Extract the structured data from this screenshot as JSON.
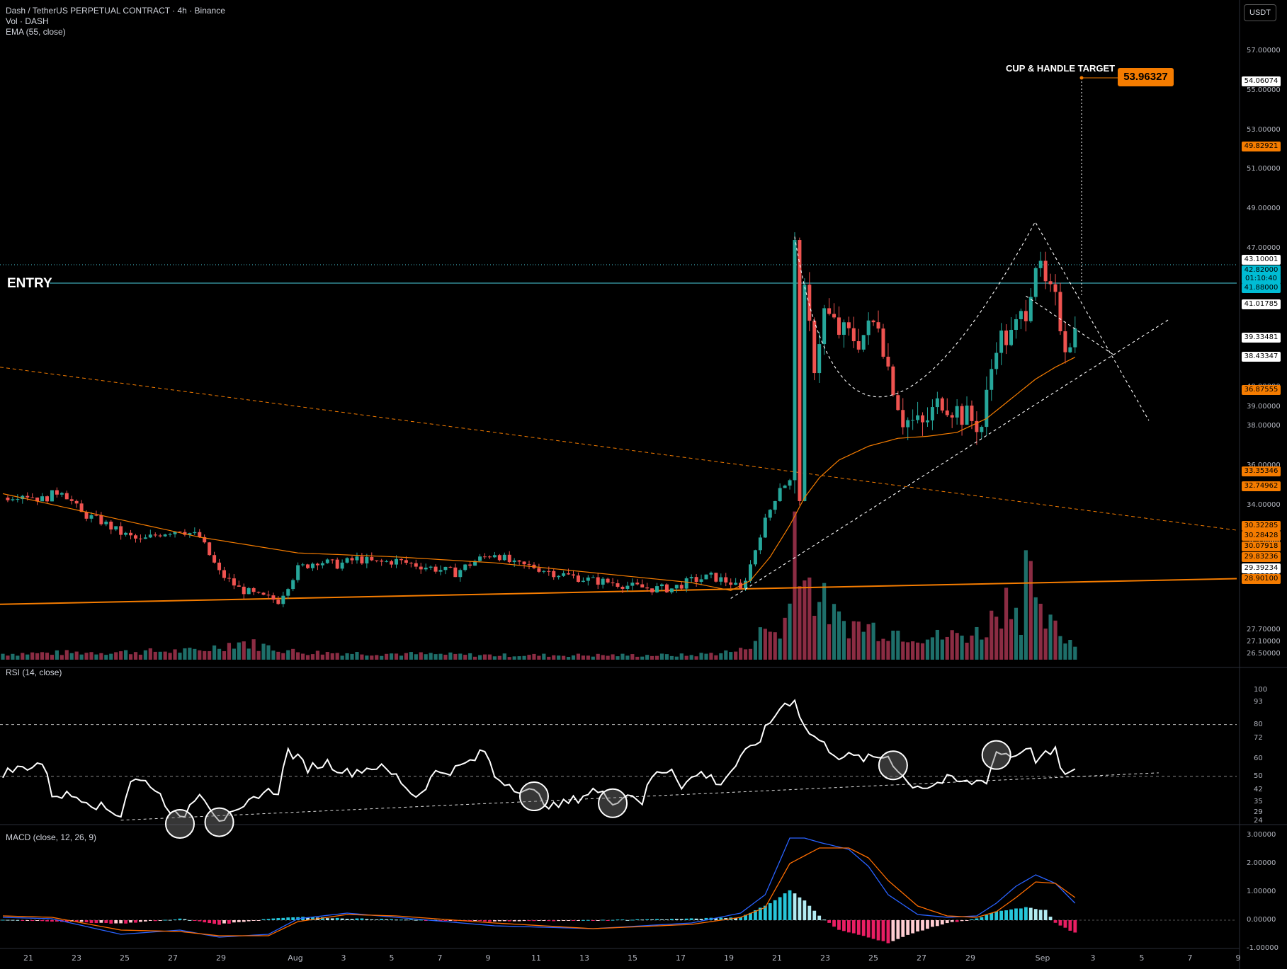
{
  "legend": {
    "symbol": "Dash / TetherUS PERPETUAL CONTRACT · 4h · Binance",
    "vol": "Vol · DASH",
    "ema": "EMA (55, close)"
  },
  "currency": "USDT",
  "annotations": {
    "entry": "ENTRY",
    "target_label": "CUP & HANDLE TARGET",
    "target_value": "53.96327"
  },
  "rsi_title": "RSI (14, close)",
  "macd_title": "MACD (close, 12, 26, 9)",
  "colors": {
    "up": "#26a69a",
    "down": "#ef5350",
    "ema": "#f57c00",
    "trend": "#f57c00",
    "rsi": "#ffffff",
    "macd": "#2962ff",
    "signal": "#ff6d00",
    "entry": "#4dd0e1"
  },
  "chart_data": [
    {
      "type": "candlestick",
      "title": "Dash / TetherUS PERPETUAL CONTRACT · 4h · Binance",
      "ylim": [
        26.2,
        58.5
      ],
      "y_ticks": [
        "57.00000",
        "55.00000",
        "53.00000",
        "51.00000",
        "49.00000",
        "47.00000",
        "45.00000",
        "44.00000",
        "40.00000",
        "39.00000",
        "38.00000",
        "36.00000",
        "35.00000",
        "34.00000",
        "33.00000",
        "32.20000",
        "31.40000",
        "30.60000",
        "27.70000",
        "27.10000",
        "26.50000"
      ],
      "price_tags": [
        {
          "value": "54.06074",
          "kind": "white"
        },
        {
          "value": "49.82921",
          "kind": "orange"
        },
        {
          "value": "43.10001",
          "kind": "white"
        },
        {
          "value": "42.82000",
          "kind": "cyan"
        },
        {
          "value": "01:10:40",
          "kind": "cyan"
        },
        {
          "value": "41.88000",
          "kind": "cyan"
        },
        {
          "value": "41.01785",
          "kind": "white"
        },
        {
          "value": "39.33481",
          "kind": "white"
        },
        {
          "value": "38.43347",
          "kind": "white"
        },
        {
          "value": "36.87555",
          "kind": "orange"
        },
        {
          "value": "33.35346",
          "kind": "orange"
        },
        {
          "value": "32.74962",
          "kind": "orange"
        },
        {
          "value": "30.32285",
          "kind": "orange"
        },
        {
          "value": "30.28428",
          "kind": "orange"
        },
        {
          "value": "30.07918",
          "kind": "orange"
        },
        {
          "value": "29.83236",
          "kind": "orange"
        },
        {
          "value": "29.39234",
          "kind": "white"
        },
        {
          "value": "28.90100",
          "kind": "orange"
        }
      ],
      "x_ticks": [
        "21",
        "23",
        "25",
        "27",
        "29",
        "Aug",
        "3",
        "5",
        "7",
        "9",
        "11",
        "13",
        "15",
        "17",
        "19",
        "21",
        "23",
        "25",
        "27",
        "29",
        "Sep",
        "3",
        "5",
        "7",
        "9"
      ],
      "close_path": [
        [
          0,
          34.4
        ],
        [
          4,
          34.6
        ],
        [
          8,
          34.3
        ],
        [
          12,
          34.8
        ],
        [
          16,
          33.6
        ],
        [
          20,
          33.2
        ],
        [
          24,
          32.6
        ],
        [
          28,
          32.2
        ],
        [
          32,
          32.6
        ],
        [
          36,
          32.8
        ],
        [
          40,
          32.4
        ],
        [
          44,
          30.6
        ],
        [
          48,
          29.8
        ],
        [
          52,
          29.4
        ],
        [
          56,
          29.2
        ],
        [
          60,
          30.8
        ],
        [
          64,
          31.2
        ],
        [
          68,
          31.0
        ],
        [
          72,
          31.3
        ],
        [
          76,
          31.1
        ],
        [
          80,
          31.2
        ],
        [
          84,
          31.0
        ],
        [
          88,
          30.8
        ],
        [
          92,
          30.6
        ],
        [
          96,
          31.2
        ],
        [
          100,
          31.6
        ],
        [
          104,
          31.0
        ],
        [
          108,
          30.9
        ],
        [
          112,
          30.6
        ],
        [
          116,
          30.4
        ],
        [
          120,
          30.2
        ],
        [
          124,
          30.1
        ],
        [
          128,
          29.9
        ],
        [
          132,
          29.8
        ],
        [
          136,
          29.8
        ],
        [
          140,
          30.2
        ],
        [
          144,
          30.4
        ],
        [
          148,
          30.1
        ],
        [
          150,
          29.7
        ],
        [
          152,
          31.0
        ],
        [
          154,
          32.6
        ],
        [
          156,
          33.8
        ],
        [
          158,
          35.0
        ],
        [
          160,
          35.2
        ],
        [
          161,
          47.0
        ],
        [
          162,
          34.4
        ],
        [
          163,
          44.5
        ],
        [
          165,
          41.2
        ],
        [
          167,
          43.8
        ],
        [
          170,
          42.8
        ],
        [
          174,
          42.4
        ],
        [
          178,
          43.4
        ],
        [
          180,
          41.0
        ],
        [
          183,
          38.4
        ],
        [
          187,
          38.0
        ],
        [
          191,
          39.4
        ],
        [
          195,
          38.6
        ],
        [
          199,
          38.0
        ],
        [
          202,
          42.4
        ],
        [
          205,
          42.5
        ],
        [
          208,
          44.0
        ],
        [
          210,
          46.4
        ],
        [
          212,
          45.0
        ],
        [
          214,
          44.2
        ],
        [
          216,
          42.3
        ],
        [
          218,
          42.8
        ]
      ],
      "volume_path": [
        [
          0,
          0.04
        ],
        [
          20,
          0.05
        ],
        [
          40,
          0.06
        ],
        [
          48,
          0.12
        ],
        [
          60,
          0.05
        ],
        [
          80,
          0.04
        ],
        [
          100,
          0.03
        ],
        [
          120,
          0.03
        ],
        [
          140,
          0.03
        ],
        [
          150,
          0.06
        ],
        [
          155,
          0.2
        ],
        [
          158,
          0.18
        ],
        [
          160,
          0.35
        ],
        [
          161,
          1.0
        ],
        [
          162,
          0.85
        ],
        [
          163,
          0.55
        ],
        [
          165,
          0.45
        ],
        [
          170,
          0.25
        ],
        [
          180,
          0.2
        ],
        [
          190,
          0.15
        ],
        [
          199,
          0.18
        ],
        [
          205,
          0.45
        ],
        [
          207,
          0.28
        ],
        [
          208,
          0.78
        ],
        [
          210,
          0.3
        ],
        [
          214,
          0.2
        ],
        [
          218,
          0.1
        ]
      ],
      "ema_path": [
        [
          0,
          34.6
        ],
        [
          20,
          33.5
        ],
        [
          40,
          32.4
        ],
        [
          60,
          31.6
        ],
        [
          80,
          31.4
        ],
        [
          100,
          31.1
        ],
        [
          120,
          30.6
        ],
        [
          140,
          30.1
        ],
        [
          148,
          29.7
        ],
        [
          152,
          30.2
        ],
        [
          156,
          31.4
        ],
        [
          160,
          33.0
        ],
        [
          163,
          34.4
        ],
        [
          166,
          35.4
        ],
        [
          170,
          36.3
        ],
        [
          176,
          37.0
        ],
        [
          182,
          37.4
        ],
        [
          188,
          37.5
        ],
        [
          194,
          37.7
        ],
        [
          200,
          38.4
        ],
        [
          206,
          39.6
        ],
        [
          210,
          40.4
        ],
        [
          214,
          41.0
        ],
        [
          218,
          41.5
        ]
      ]
    },
    {
      "type": "line",
      "title": "RSI (14, close)",
      "ylim": [
        24,
        100
      ],
      "y_ticks": [
        "100",
        "93",
        "80",
        "72",
        "60",
        "50",
        "42",
        "35",
        "29",
        "24"
      ],
      "levels": [
        80,
        50
      ],
      "values_path": [
        [
          0,
          52
        ],
        [
          8,
          58
        ],
        [
          10,
          40
        ],
        [
          16,
          38
        ],
        [
          20,
          32
        ],
        [
          24,
          28
        ],
        [
          26,
          48
        ],
        [
          30,
          46
        ],
        [
          36,
          24
        ],
        [
          40,
          42
        ],
        [
          44,
          25
        ],
        [
          48,
          28
        ],
        [
          52,
          40
        ],
        [
          56,
          42
        ],
        [
          58,
          65
        ],
        [
          62,
          55
        ],
        [
          66,
          58
        ],
        [
          70,
          52
        ],
        [
          76,
          56
        ],
        [
          80,
          50
        ],
        [
          84,
          38
        ],
        [
          88,
          52
        ],
        [
          92,
          54
        ],
        [
          96,
          60
        ],
        [
          98,
          65
        ],
        [
          100,
          50
        ],
        [
          104,
          44
        ],
        [
          108,
          40
        ],
        [
          112,
          32
        ],
        [
          116,
          36
        ],
        [
          120,
          42
        ],
        [
          124,
          36
        ],
        [
          128,
          40
        ],
        [
          130,
          35
        ],
        [
          132,
          50
        ],
        [
          136,
          55
        ],
        [
          138,
          45
        ],
        [
          142,
          52
        ],
        [
          146,
          46
        ],
        [
          150,
          60
        ],
        [
          154,
          72
        ],
        [
          158,
          90
        ],
        [
          161,
          95
        ],
        [
          163,
          78
        ],
        [
          167,
          68
        ],
        [
          170,
          62
        ],
        [
          176,
          60
        ],
        [
          180,
          62
        ],
        [
          184,
          46
        ],
        [
          188,
          44
        ],
        [
          192,
          48
        ],
        [
          196,
          46
        ],
        [
          200,
          48
        ],
        [
          202,
          64
        ],
        [
          206,
          62
        ],
        [
          208,
          68
        ],
        [
          210,
          60
        ],
        [
          214,
          64
        ],
        [
          216,
          50
        ],
        [
          218,
          52
        ]
      ],
      "trendline": [
        [
          24,
          24.5
        ],
        [
          235,
          52
        ]
      ],
      "circled_lows": [
        36,
        44,
        108,
        124,
        181,
        202
      ]
    },
    {
      "type": "bar+line",
      "title": "MACD (close, 12, 26, 9)",
      "ylim": [
        -1.0,
        3.0
      ],
      "y_ticks": [
        "3.00000",
        "2.00000",
        "1.00000",
        "0.00000",
        "-1.00000"
      ],
      "macd_path": [
        [
          0,
          0.1
        ],
        [
          10,
          0.05
        ],
        [
          24,
          -0.5
        ],
        [
          36,
          -0.35
        ],
        [
          44,
          -0.6
        ],
        [
          54,
          -0.5
        ],
        [
          60,
          0.05
        ],
        [
          70,
          0.25
        ],
        [
          80,
          0.1
        ],
        [
          100,
          -0.2
        ],
        [
          120,
          -0.3
        ],
        [
          140,
          -0.1
        ],
        [
          150,
          0.25
        ],
        [
          155,
          0.9
        ],
        [
          160,
          2.9
        ],
        [
          163,
          2.9
        ],
        [
          166,
          2.75
        ],
        [
          172,
          2.5
        ],
        [
          176,
          1.9
        ],
        [
          180,
          0.9
        ],
        [
          186,
          0.2
        ],
        [
          192,
          0.1
        ],
        [
          198,
          0.15
        ],
        [
          202,
          0.6
        ],
        [
          206,
          1.2
        ],
        [
          210,
          1.6
        ],
        [
          214,
          1.3
        ],
        [
          218,
          0.6
        ]
      ],
      "signal_path": [
        [
          0,
          0.15
        ],
        [
          10,
          0.1
        ],
        [
          24,
          -0.35
        ],
        [
          36,
          -0.4
        ],
        [
          44,
          -0.55
        ],
        [
          54,
          -0.55
        ],
        [
          60,
          -0.05
        ],
        [
          70,
          0.2
        ],
        [
          80,
          0.15
        ],
        [
          100,
          -0.1
        ],
        [
          120,
          -0.3
        ],
        [
          140,
          -0.15
        ],
        [
          150,
          0.1
        ],
        [
          155,
          0.45
        ],
        [
          160,
          2.0
        ],
        [
          166,
          2.55
        ],
        [
          172,
          2.55
        ],
        [
          176,
          2.2
        ],
        [
          180,
          1.4
        ],
        [
          186,
          0.5
        ],
        [
          192,
          0.15
        ],
        [
          198,
          0.1
        ],
        [
          202,
          0.3
        ],
        [
          206,
          0.8
        ],
        [
          210,
          1.35
        ],
        [
          214,
          1.3
        ],
        [
          218,
          0.8
        ]
      ],
      "hist_path": [
        [
          0,
          0.02
        ],
        [
          24,
          -0.12
        ],
        [
          36,
          0.05
        ],
        [
          44,
          -0.15
        ],
        [
          54,
          0.05
        ],
        [
          60,
          0.12
        ],
        [
          70,
          0.06
        ],
        [
          100,
          -0.05
        ],
        [
          140,
          0.05
        ],
        [
          150,
          0.1
        ],
        [
          156,
          0.6
        ],
        [
          160,
          1.05
        ],
        [
          163,
          0.7
        ],
        [
          166,
          0.15
        ],
        [
          170,
          -0.35
        ],
        [
          176,
          -0.6
        ],
        [
          180,
          -0.8
        ],
        [
          186,
          -0.4
        ],
        [
          192,
          -0.1
        ],
        [
          198,
          0.05
        ],
        [
          202,
          0.3
        ],
        [
          208,
          0.45
        ],
        [
          212,
          0.35
        ],
        [
          214,
          -0.1
        ],
        [
          218,
          -0.45
        ]
      ]
    }
  ]
}
